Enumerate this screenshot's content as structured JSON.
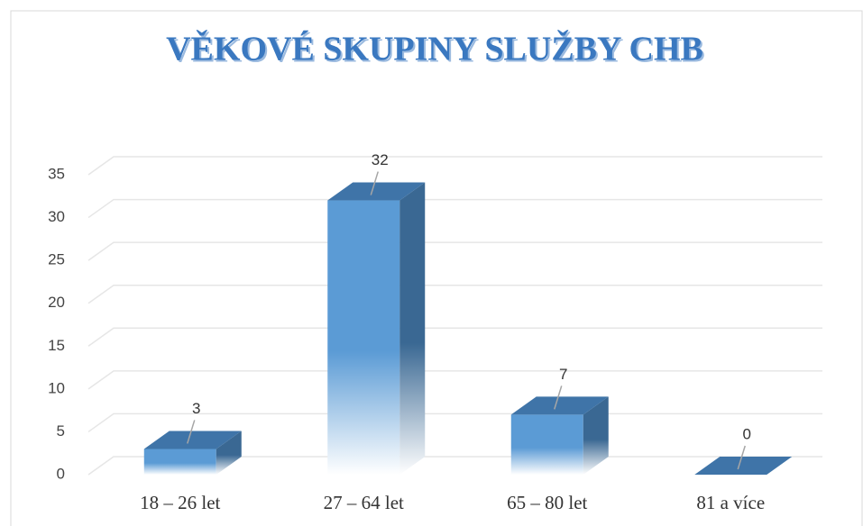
{
  "chart_data": {
    "type": "bar",
    "title": "VĚKOVÉ SKUPINY SLUŽBY CHB",
    "categories": [
      "18 – 26 let",
      "27 – 64 let",
      "65 – 80 let",
      "81 a více"
    ],
    "values": [
      3,
      32,
      7,
      0
    ],
    "color": "#5b9bd5",
    "ylim": [
      0,
      35
    ],
    "yticks": [
      0,
      5,
      10,
      15,
      20,
      25,
      30,
      35
    ],
    "grid": true
  }
}
